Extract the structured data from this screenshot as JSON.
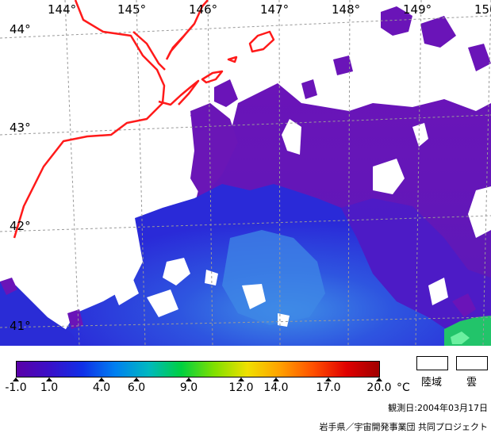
{
  "map": {
    "longitude_labels": [
      "144°",
      "145°",
      "146°",
      "147°",
      "148°",
      "149°",
      "150"
    ],
    "latitude_labels": [
      "44°",
      "43°",
      "42°",
      "41°"
    ],
    "colors": {
      "coastline": "#ff1a1a",
      "grid": "#999999",
      "ocean_cold": "#6a10b8",
      "ocean_mid": "#2a2ae0",
      "ocean_warm": "#3a8ae8",
      "ocean_green": "#22cc66",
      "land_cloud": "#ffffff"
    }
  },
  "legend": {
    "colorbar_stops": [
      "#5a00a8",
      "#3a10c8",
      "#1030e8",
      "#0080f0",
      "#00b8c0",
      "#00d040",
      "#80e000",
      "#f0e000",
      "#ffa000",
      "#ff5000",
      "#e00000",
      "#a00000"
    ],
    "ticks": [
      "-1.0",
      "1.0",
      "4.0",
      "6.0",
      "9.0",
      "12.0",
      "14.0",
      "17.0",
      "20.0"
    ],
    "unit": "°C",
    "land_label": "陸域",
    "cloud_label": "雲"
  },
  "footer": {
    "observation_date": "観測日:2004年03月17日",
    "credit": "岩手県／宇宙開発事業団 共同プロジェクト"
  }
}
